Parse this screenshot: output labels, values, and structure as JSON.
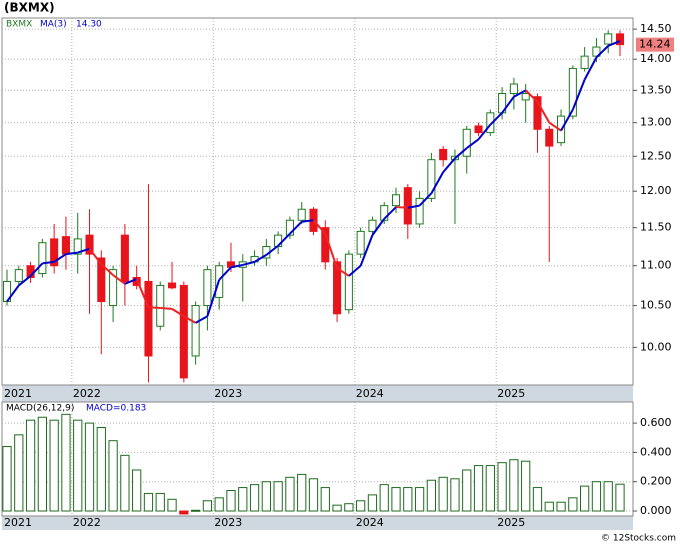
{
  "chart_data": {
    "type": "candlestick",
    "title": "(BXMX)",
    "categories": [
      "2021",
      null,
      null,
      null,
      null,
      null,
      "2022",
      null,
      null,
      null,
      null,
      null,
      null,
      null,
      null,
      null,
      null,
      null,
      "2023",
      null,
      null,
      null,
      null,
      null,
      null,
      null,
      null,
      null,
      null,
      null,
      "2024",
      null,
      null,
      null,
      null,
      null,
      null,
      null,
      null,
      null,
      null,
      null,
      "2025",
      null,
      null,
      null,
      null,
      null,
      null,
      null,
      null,
      null,
      null
    ],
    "series": [
      {
        "name": "BXMX",
        "open": [
          10.55,
          10.8,
          11.0,
          10.9,
          11.35,
          11.38,
          11.15,
          11.4,
          11.1,
          10.5,
          11.4,
          10.85,
          10.8,
          10.25,
          10.78,
          10.75,
          9.9,
          10.5,
          10.6,
          11.05,
          10.98,
          11.05,
          11.1,
          11.25,
          11.4,
          11.6,
          11.75,
          11.5,
          11.05,
          10.45,
          11.15,
          11.45,
          11.6,
          11.8,
          12.05,
          11.55,
          11.9,
          12.6,
          12.45,
          12.5,
          12.95,
          12.85,
          13.15,
          13.45,
          13.35,
          13.4,
          12.9,
          12.7,
          13.1,
          13.85,
          14.05,
          14.25,
          14.42
        ],
        "high": [
          10.95,
          11.0,
          11.05,
          11.35,
          11.55,
          11.65,
          11.7,
          11.75,
          11.2,
          11.0,
          11.55,
          11.0,
          12.1,
          10.8,
          11.05,
          10.8,
          10.55,
          11.0,
          11.05,
          11.3,
          11.15,
          11.2,
          11.35,
          11.45,
          11.65,
          11.85,
          11.78,
          11.6,
          11.1,
          11.2,
          11.5,
          11.65,
          11.85,
          12.05,
          12.1,
          12.0,
          12.55,
          12.65,
          12.6,
          12.95,
          13.0,
          13.2,
          13.55,
          13.7,
          13.6,
          13.45,
          12.95,
          13.2,
          13.9,
          14.2,
          14.35,
          14.48,
          14.48
        ],
        "low": [
          10.5,
          10.75,
          10.78,
          10.85,
          10.9,
          10.95,
          10.9,
          10.4,
          9.92,
          10.3,
          10.5,
          10.7,
          9.6,
          10.2,
          10.7,
          9.6,
          9.8,
          10.2,
          10.45,
          10.92,
          10.55,
          11.0,
          11.0,
          11.15,
          11.35,
          11.55,
          11.4,
          10.95,
          10.3,
          10.4,
          11.1,
          11.4,
          11.55,
          11.7,
          11.35,
          11.5,
          11.85,
          12.35,
          11.55,
          12.25,
          12.8,
          12.8,
          13.05,
          13.2,
          13.0,
          12.55,
          11.05,
          12.65,
          13.05,
          13.8,
          13.95,
          14.1,
          14.05
        ],
        "close": [
          10.8,
          10.95,
          10.85,
          11.3,
          11.0,
          11.15,
          11.35,
          11.15,
          10.55,
          10.95,
          10.8,
          10.75,
          9.9,
          10.75,
          10.72,
          9.65,
          10.5,
          10.95,
          11.0,
          10.98,
          11.05,
          11.12,
          11.25,
          11.4,
          11.6,
          11.75,
          11.45,
          11.05,
          10.4,
          11.15,
          11.45,
          11.6,
          11.8,
          11.95,
          11.55,
          11.9,
          12.45,
          12.45,
          12.5,
          12.9,
          12.85,
          13.15,
          13.45,
          13.6,
          13.45,
          12.9,
          12.65,
          13.1,
          13.85,
          14.05,
          14.2,
          14.42,
          14.24
        ],
        "last_label": "14.24",
        "up_color": "#1f7a1f",
        "down_color": "#e8141c"
      }
    ],
    "ma": {
      "name": "MA(3)",
      "value_label": "14.30",
      "up_color": "#0000cc",
      "down_color": "#ee2222",
      "values": [
        10.55,
        10.75,
        10.87,
        11.03,
        11.05,
        11.15,
        11.17,
        11.22,
        11.02,
        10.88,
        10.77,
        10.83,
        10.48,
        10.47,
        10.46,
        10.37,
        10.29,
        10.37,
        10.82,
        10.98,
        11.01,
        11.05,
        11.14,
        11.26,
        11.42,
        11.58,
        11.6,
        11.42,
        10.97,
        10.87,
        11.0,
        11.4,
        11.62,
        11.78,
        11.77,
        11.8,
        11.97,
        12.27,
        12.47,
        12.62,
        12.75,
        12.97,
        13.15,
        13.4,
        13.5,
        13.32,
        13.0,
        12.88,
        13.2,
        13.67,
        14.03,
        14.22,
        14.3
      ]
    },
    "ylim": [
      9.57,
      14.69
    ],
    "log_scale": true,
    "yticks": [
      {
        "value": 10,
        "label": "10.00"
      },
      {
        "value": 10.5,
        "label": "10.50"
      },
      {
        "value": 11,
        "label": "11.00"
      },
      {
        "value": 11.5,
        "label": "11.50"
      },
      {
        "value": 12,
        "label": "12.00"
      },
      {
        "value": 12.5,
        "label": "12.50"
      },
      {
        "value": 13,
        "label": "13.00"
      },
      {
        "value": 13.5,
        "label": "13.50"
      },
      {
        "value": 14,
        "label": "14.00"
      },
      {
        "value": 14.5,
        "label": "14.50"
      }
    ],
    "grid": true,
    "macd": {
      "name": "MACD(26,12,9)",
      "value_label": "MACD=0.183",
      "color": "#1f6a1f",
      "negative_color": "#e8141c",
      "values": [
        0.44,
        0.52,
        0.62,
        0.64,
        0.62,
        0.66,
        0.62,
        0.6,
        0.57,
        0.48,
        0.38,
        0.28,
        0.12,
        0.12,
        0.08,
        -0.02,
        0.005,
        0.07,
        0.09,
        0.14,
        0.16,
        0.18,
        0.2,
        0.2,
        0.23,
        0.25,
        0.22,
        0.16,
        0.04,
        0.05,
        0.07,
        0.11,
        0.18,
        0.16,
        0.16,
        0.16,
        0.21,
        0.23,
        0.22,
        0.28,
        0.31,
        0.31,
        0.33,
        0.35,
        0.34,
        0.16,
        0.06,
        0.06,
        0.09,
        0.17,
        0.2,
        0.2,
        0.183
      ],
      "ylim": [
        -0.034,
        0.744
      ],
      "yticks": [
        {
          "value": 0,
          "label": "0.000"
        },
        {
          "value": 0.2,
          "label": "0.200"
        },
        {
          "value": 0.4,
          "label": "0.400"
        },
        {
          "value": 0.6,
          "label": "0.600"
        }
      ]
    },
    "footer": "© 12Stocks.com"
  }
}
